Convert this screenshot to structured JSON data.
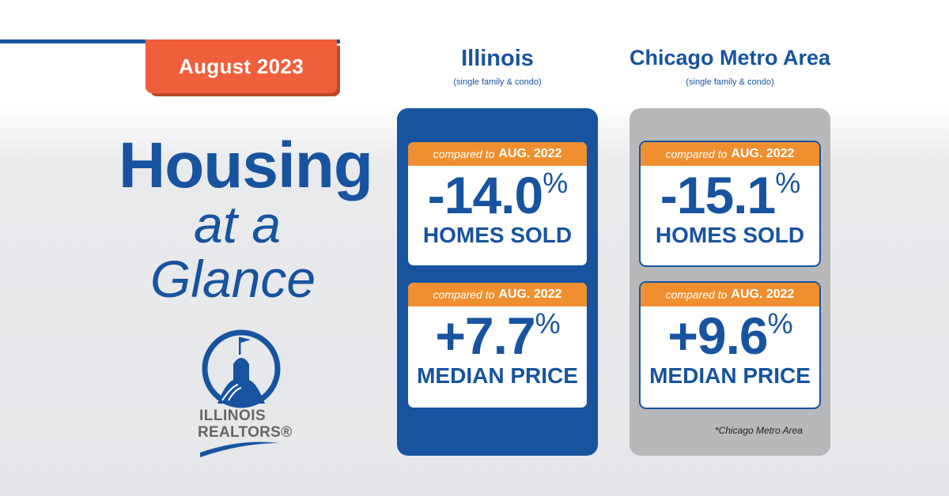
{
  "date_tab": "August 2023",
  "headline": {
    "line1": "Housing",
    "line2": "at a",
    "line3": "Glance"
  },
  "logo": {
    "line1": "ILLINOIS",
    "line2": "REALTORS®"
  },
  "columns": [
    {
      "title": "Illinois",
      "subtitle": "(single family & condo)",
      "cards": [
        {
          "compare_prefix": "compared to",
          "compare_period": "AUG. 2022",
          "value": "-14.0",
          "unit": "%",
          "label": "HOMES SOLD"
        },
        {
          "compare_prefix": "compared to",
          "compare_period": "AUG. 2022",
          "value": "+7.7",
          "unit": "%",
          "label": "MEDIAN PRICE"
        }
      ]
    },
    {
      "title": "Chicago Metro Area",
      "subtitle": "(single family & condo)",
      "cards": [
        {
          "compare_prefix": "compared to",
          "compare_period": "AUG. 2022",
          "value": "-15.1",
          "unit": "%",
          "label": "HOMES SOLD"
        },
        {
          "compare_prefix": "compared to",
          "compare_period": "AUG. 2022",
          "value": "+9.6",
          "unit": "%",
          "label": "MEDIAN PRICE"
        }
      ],
      "note": "*Chicago Metro Area"
    }
  ],
  "colors": {
    "brand_blue": "#17539f",
    "accent_orange": "#f08f2f",
    "tab_red": "#ef5f3c",
    "panel_gray": "#b7b8ba"
  }
}
